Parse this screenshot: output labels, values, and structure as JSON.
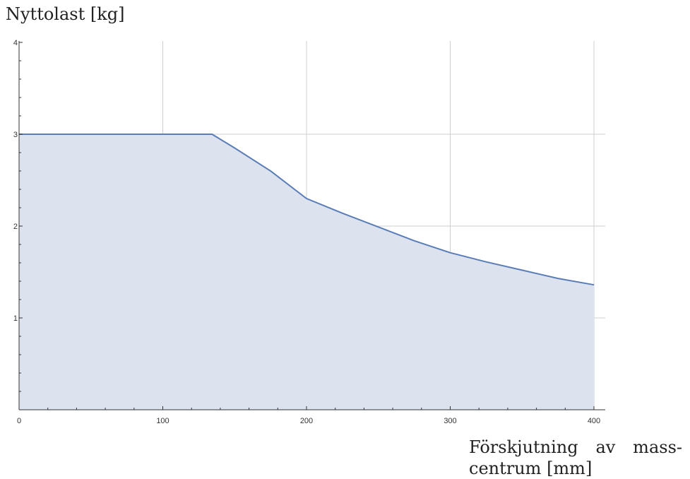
{
  "chart_data": {
    "type": "area",
    "title": "",
    "ylabel": "Nyttolast [kg]",
    "xlabel": "Förskjutning av mass-centrum [mm]",
    "xlim": [
      0,
      405
    ],
    "ylim": [
      0,
      4
    ],
    "x_ticks": [
      0,
      100,
      200,
      300,
      400
    ],
    "y_ticks": [
      1,
      2,
      3,
      4
    ],
    "grid": true,
    "series": [
      {
        "x": [
          0,
          134.3,
          150,
          175,
          200,
          225,
          250,
          275,
          300,
          325,
          350,
          375,
          400
        ],
        "values": [
          3.0,
          3.0,
          2.85,
          2.6,
          2.3,
          2.14,
          1.99,
          1.84,
          1.71,
          1.61,
          1.52,
          1.43,
          1.36
        ]
      }
    ],
    "colors": {
      "line": "#5a7db5",
      "fill": "#dce3ef",
      "grid": "#cfcfcf",
      "axis": "#333333"
    }
  }
}
